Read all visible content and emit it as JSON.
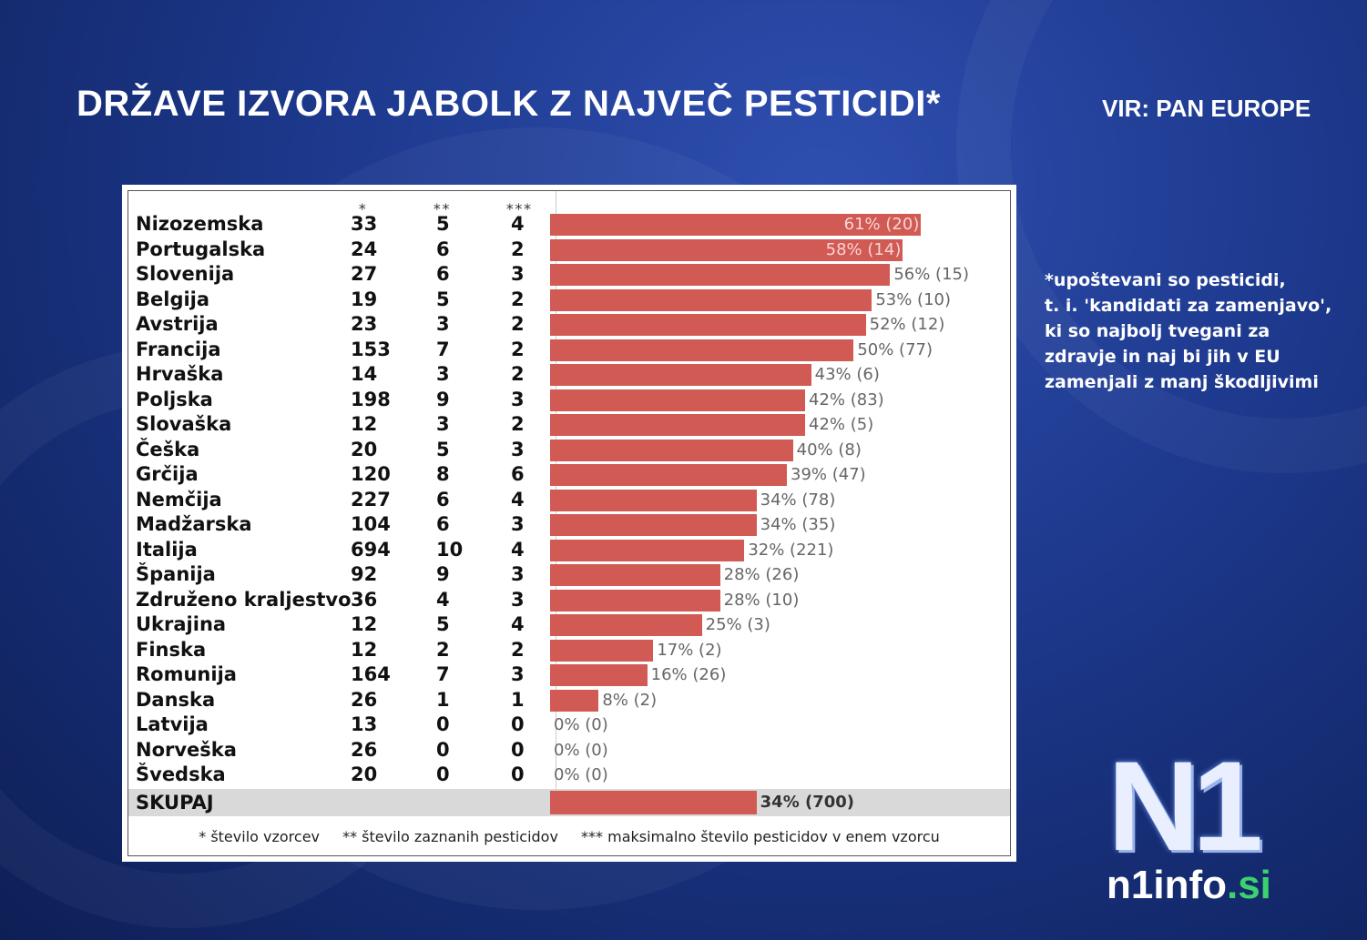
{
  "title": "DRŽAVE IZVORA JABOLK Z NAJVEČ PESTICIDI*",
  "source": "VIR: PAN EUROPE",
  "note_lines": [
    "*upoštevani so pesticidi,",
    "t. i. 'kandidati za zamenjavo',",
    "ki so najbolj tvegani za",
    "zdravje in naj bi jih v EU",
    "zamenjali z manj škodljivimi"
  ],
  "colors": {
    "bar": "#d15a54",
    "accent_logo": "#3bd36b"
  },
  "logo": {
    "mark": "N1",
    "text_main": "n1info",
    "text_dot": ".si"
  },
  "chart_data": {
    "type": "bar",
    "orientation": "horizontal",
    "column_headers": [
      "*",
      "**",
      "***"
    ],
    "countries": [
      "Nizozemska",
      "Portugalska",
      "Slovenija",
      "Belgija",
      "Avstrija",
      "Francija",
      "Hrvaška",
      "Poljska",
      "Slovaška",
      "Češka",
      "Grčija",
      "Nemčija",
      "Madžarska",
      "Italija",
      "Španija",
      "Združeno kraljestvo",
      "Ukrajina",
      "Finska",
      "Romunija",
      "Danska",
      "Latvija",
      "Norveška",
      "Švedska"
    ],
    "samples": [
      33,
      24,
      27,
      19,
      23,
      153,
      14,
      198,
      12,
      20,
      120,
      227,
      104,
      694,
      92,
      36,
      12,
      12,
      164,
      26,
      13,
      26,
      20
    ],
    "pesticides_detected": [
      5,
      6,
      6,
      5,
      3,
      7,
      3,
      9,
      3,
      5,
      8,
      6,
      6,
      10,
      9,
      4,
      5,
      2,
      7,
      1,
      0,
      0,
      0
    ],
    "max_pesticides_per_sample": [
      4,
      2,
      3,
      2,
      2,
      2,
      2,
      3,
      2,
      3,
      6,
      4,
      3,
      4,
      3,
      3,
      4,
      2,
      3,
      1,
      0,
      0,
      0
    ],
    "percent": [
      61,
      58,
      56,
      53,
      52,
      50,
      43,
      42,
      42,
      40,
      39,
      34,
      34,
      32,
      28,
      28,
      25,
      17,
      16,
      8,
      0,
      0,
      0
    ],
    "bar_labels": [
      "61% (20)",
      "58% (14)",
      "56% (15)",
      "53% (10)",
      "52% (12)",
      "50% (77)",
      "43% (6)",
      "42% (83)",
      "42% (5)",
      "40% (8)",
      "39% (47)",
      "34% (78)",
      "34% (35)",
      "32% (221)",
      "28% (26)",
      "28% (10)",
      "25% (3)",
      "17% (2)",
      "16% (26)",
      "8% (2)",
      "0% (0)",
      "0% (0)",
      "0% (0)"
    ],
    "total": {
      "label": "SKUPAJ",
      "percent": 34,
      "bar_label": "34% (700)"
    },
    "xlim": [
      0,
      75
    ],
    "legend": [
      "* število vzorcev",
      "** število zaznanih pesticidov",
      "*** maksimalno število pesticidov v enem vzorcu"
    ]
  }
}
